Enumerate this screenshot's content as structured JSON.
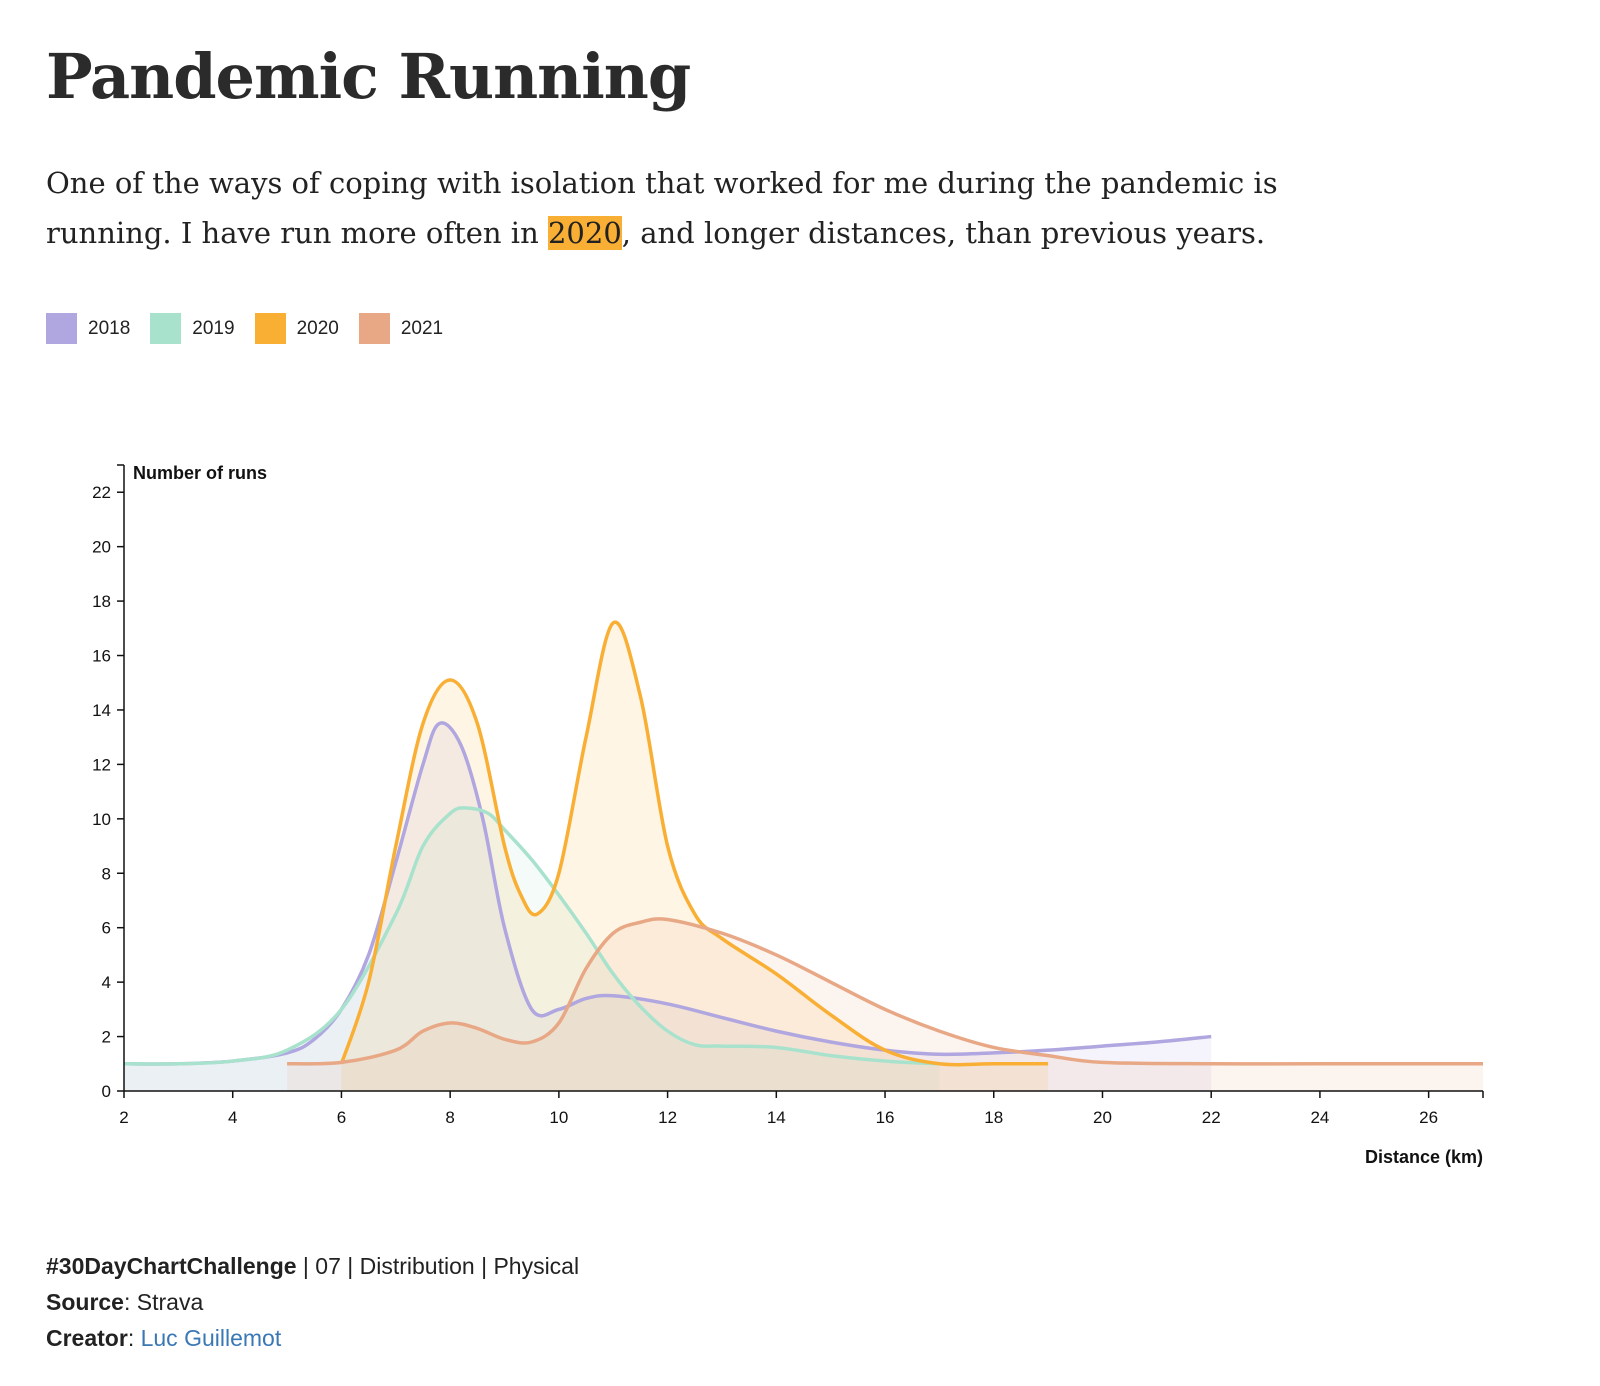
{
  "title": "Pandemic Running",
  "intro": {
    "line1": "One of the ways of coping with isolation that worked for me during the pandemic is",
    "line2_before": "running. I have run more often in ",
    "highlight": "2020",
    "line2_after": ", and longer distances, than previous years."
  },
  "colors": {
    "2018": "#b0a6e0",
    "2019": "#a8e2cd",
    "2020": "#f9ae34",
    "2021": "#e8a886",
    "highlight": "#f9ae34",
    "link": "#3a78b5"
  },
  "legend": [
    {
      "label": "2018",
      "color": "#b0a6e0"
    },
    {
      "label": "2019",
      "color": "#a8e2cd"
    },
    {
      "label": "2020",
      "color": "#f9ae34"
    },
    {
      "label": "2021",
      "color": "#e8a886"
    }
  ],
  "chart_data": {
    "type": "area",
    "xlabel": "Distance (km)",
    "ylabel": "Number of runs",
    "xlim": [
      2,
      27
    ],
    "ylim": [
      0,
      23
    ],
    "xticks": [
      2,
      4,
      6,
      8,
      10,
      12,
      14,
      16,
      18,
      20,
      22,
      24,
      26
    ],
    "yticks": [
      0,
      2,
      4,
      6,
      8,
      10,
      12,
      14,
      16,
      18,
      20,
      22
    ],
    "grid": false,
    "legend_position": "top-left",
    "series": [
      {
        "name": "2018",
        "color": "#b0a6e0",
        "x": [
          2,
          3,
          4,
          5,
          5.5,
          6,
          6.5,
          7,
          7.5,
          7.8,
          8.2,
          8.6,
          9,
          9.5,
          10,
          10.5,
          11,
          12,
          13,
          14,
          15,
          16,
          17,
          18,
          19,
          20,
          21,
          22
        ],
        "y": [
          1,
          1,
          1.1,
          1.4,
          1.9,
          3,
          5,
          8.4,
          12,
          13.5,
          12.7,
          10,
          6,
          3,
          3,
          3.4,
          3.5,
          3.2,
          2.7,
          2.2,
          1.8,
          1.5,
          1.35,
          1.4,
          1.5,
          1.65,
          1.8,
          2
        ]
      },
      {
        "name": "2019",
        "color": "#a8e2cd",
        "x": [
          2,
          3,
          4,
          5,
          6,
          7,
          7.5,
          8,
          8.3,
          8.7,
          9,
          9.5,
          10,
          10.5,
          11,
          11.5,
          12,
          12.5,
          13,
          14,
          15,
          16,
          17
        ],
        "y": [
          1,
          1,
          1.1,
          1.5,
          3,
          6.5,
          9,
          10.2,
          10.4,
          10.2,
          9.6,
          8.5,
          7.2,
          5.8,
          4.3,
          3.1,
          2.2,
          1.7,
          1.65,
          1.6,
          1.3,
          1.1,
          1
        ]
      },
      {
        "name": "2020",
        "color": "#f9ae34",
        "x": [
          6,
          6.5,
          7,
          7.5,
          8,
          8.5,
          9,
          9.3,
          9.6,
          10,
          10.5,
          11,
          11.5,
          12,
          12.5,
          13,
          14,
          15,
          16,
          17,
          18,
          19
        ],
        "y": [
          1,
          4,
          9,
          13.5,
          15.1,
          13.5,
          9,
          7.2,
          6.5,
          8,
          13,
          17.2,
          14.5,
          9,
          6.5,
          5.6,
          4.3,
          2.8,
          1.5,
          1,
          1,
          1
        ]
      },
      {
        "name": "2021",
        "color": "#e8a886",
        "x": [
          5,
          6,
          7,
          7.5,
          8,
          8.5,
          9,
          9.5,
          10,
          10.5,
          11,
          11.5,
          12,
          13,
          14,
          15,
          16,
          17,
          18,
          19,
          20,
          22,
          24,
          27
        ],
        "y": [
          1,
          1.05,
          1.5,
          2.2,
          2.5,
          2.3,
          1.9,
          1.8,
          2.5,
          4.5,
          5.8,
          6.2,
          6.3,
          5.8,
          5,
          4,
          3,
          2.2,
          1.6,
          1.3,
          1.05,
          1,
          1,
          1
        ]
      }
    ]
  },
  "footer": {
    "challenge_tag": "#30DayChartChallenge",
    "challenge_rest": " | 07 | Distribution | Physical",
    "source_label": "Source",
    "source_value": ": Strava",
    "creator_label": "Creator",
    "creator_sep": ": ",
    "creator_name": "Luc Guillemot"
  }
}
